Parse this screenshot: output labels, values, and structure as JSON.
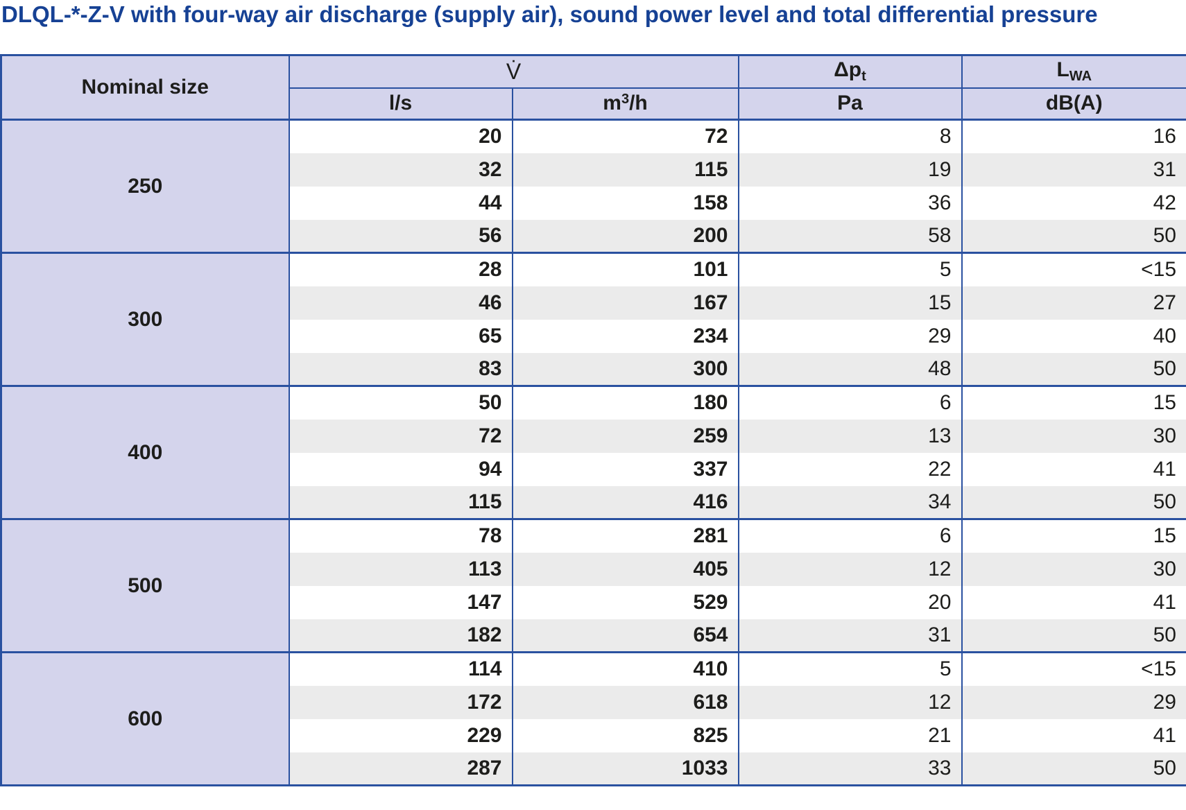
{
  "title": "DLQL-*-Z-V with four-way air discharge (supply air), sound power level and total differential pressure",
  "table": {
    "header": {
      "nominal_size": "Nominal size",
      "v_symbol": "V̇",
      "dp_main": "Δp",
      "dp_sub": "t",
      "lwa_main": "L",
      "lwa_sub": "WA",
      "unit_ls": "l/s",
      "unit_m3h_base": "m",
      "unit_m3h_sup": "3",
      "unit_m3h_rest": "/h",
      "unit_pa": "Pa",
      "unit_dba": "dB(A)"
    },
    "groups": [
      {
        "size": "250",
        "rows": [
          {
            "ls": "20",
            "m3h": "72",
            "pa": "8",
            "dba": "16"
          },
          {
            "ls": "32",
            "m3h": "115",
            "pa": "19",
            "dba": "31"
          },
          {
            "ls": "44",
            "m3h": "158",
            "pa": "36",
            "dba": "42"
          },
          {
            "ls": "56",
            "m3h": "200",
            "pa": "58",
            "dba": "50"
          }
        ]
      },
      {
        "size": "300",
        "rows": [
          {
            "ls": "28",
            "m3h": "101",
            "pa": "5",
            "dba": "<15"
          },
          {
            "ls": "46",
            "m3h": "167",
            "pa": "15",
            "dba": "27"
          },
          {
            "ls": "65",
            "m3h": "234",
            "pa": "29",
            "dba": "40"
          },
          {
            "ls": "83",
            "m3h": "300",
            "pa": "48",
            "dba": "50"
          }
        ]
      },
      {
        "size": "400",
        "rows": [
          {
            "ls": "50",
            "m3h": "180",
            "pa": "6",
            "dba": "15"
          },
          {
            "ls": "72",
            "m3h": "259",
            "pa": "13",
            "dba": "30"
          },
          {
            "ls": "94",
            "m3h": "337",
            "pa": "22",
            "dba": "41"
          },
          {
            "ls": "115",
            "m3h": "416",
            "pa": "34",
            "dba": "50"
          }
        ]
      },
      {
        "size": "500",
        "rows": [
          {
            "ls": "78",
            "m3h": "281",
            "pa": "6",
            "dba": "15"
          },
          {
            "ls": "113",
            "m3h": "405",
            "pa": "12",
            "dba": "30"
          },
          {
            "ls": "147",
            "m3h": "529",
            "pa": "20",
            "dba": "41"
          },
          {
            "ls": "182",
            "m3h": "654",
            "pa": "31",
            "dba": "50"
          }
        ]
      },
      {
        "size": "600",
        "rows": [
          {
            "ls": "114",
            "m3h": "410",
            "pa": "5",
            "dba": "<15"
          },
          {
            "ls": "172",
            "m3h": "618",
            "pa": "12",
            "dba": "29"
          },
          {
            "ls": "229",
            "m3h": "825",
            "pa": "21",
            "dba": "41"
          },
          {
            "ls": "287",
            "m3h": "1033",
            "pa": "33",
            "dba": "50"
          }
        ]
      }
    ]
  },
  "colors": {
    "title_blue": "#164194",
    "border_blue": "#2a51a0",
    "header_lavender": "#d4d4ec",
    "row_gray": "#ebebeb"
  }
}
